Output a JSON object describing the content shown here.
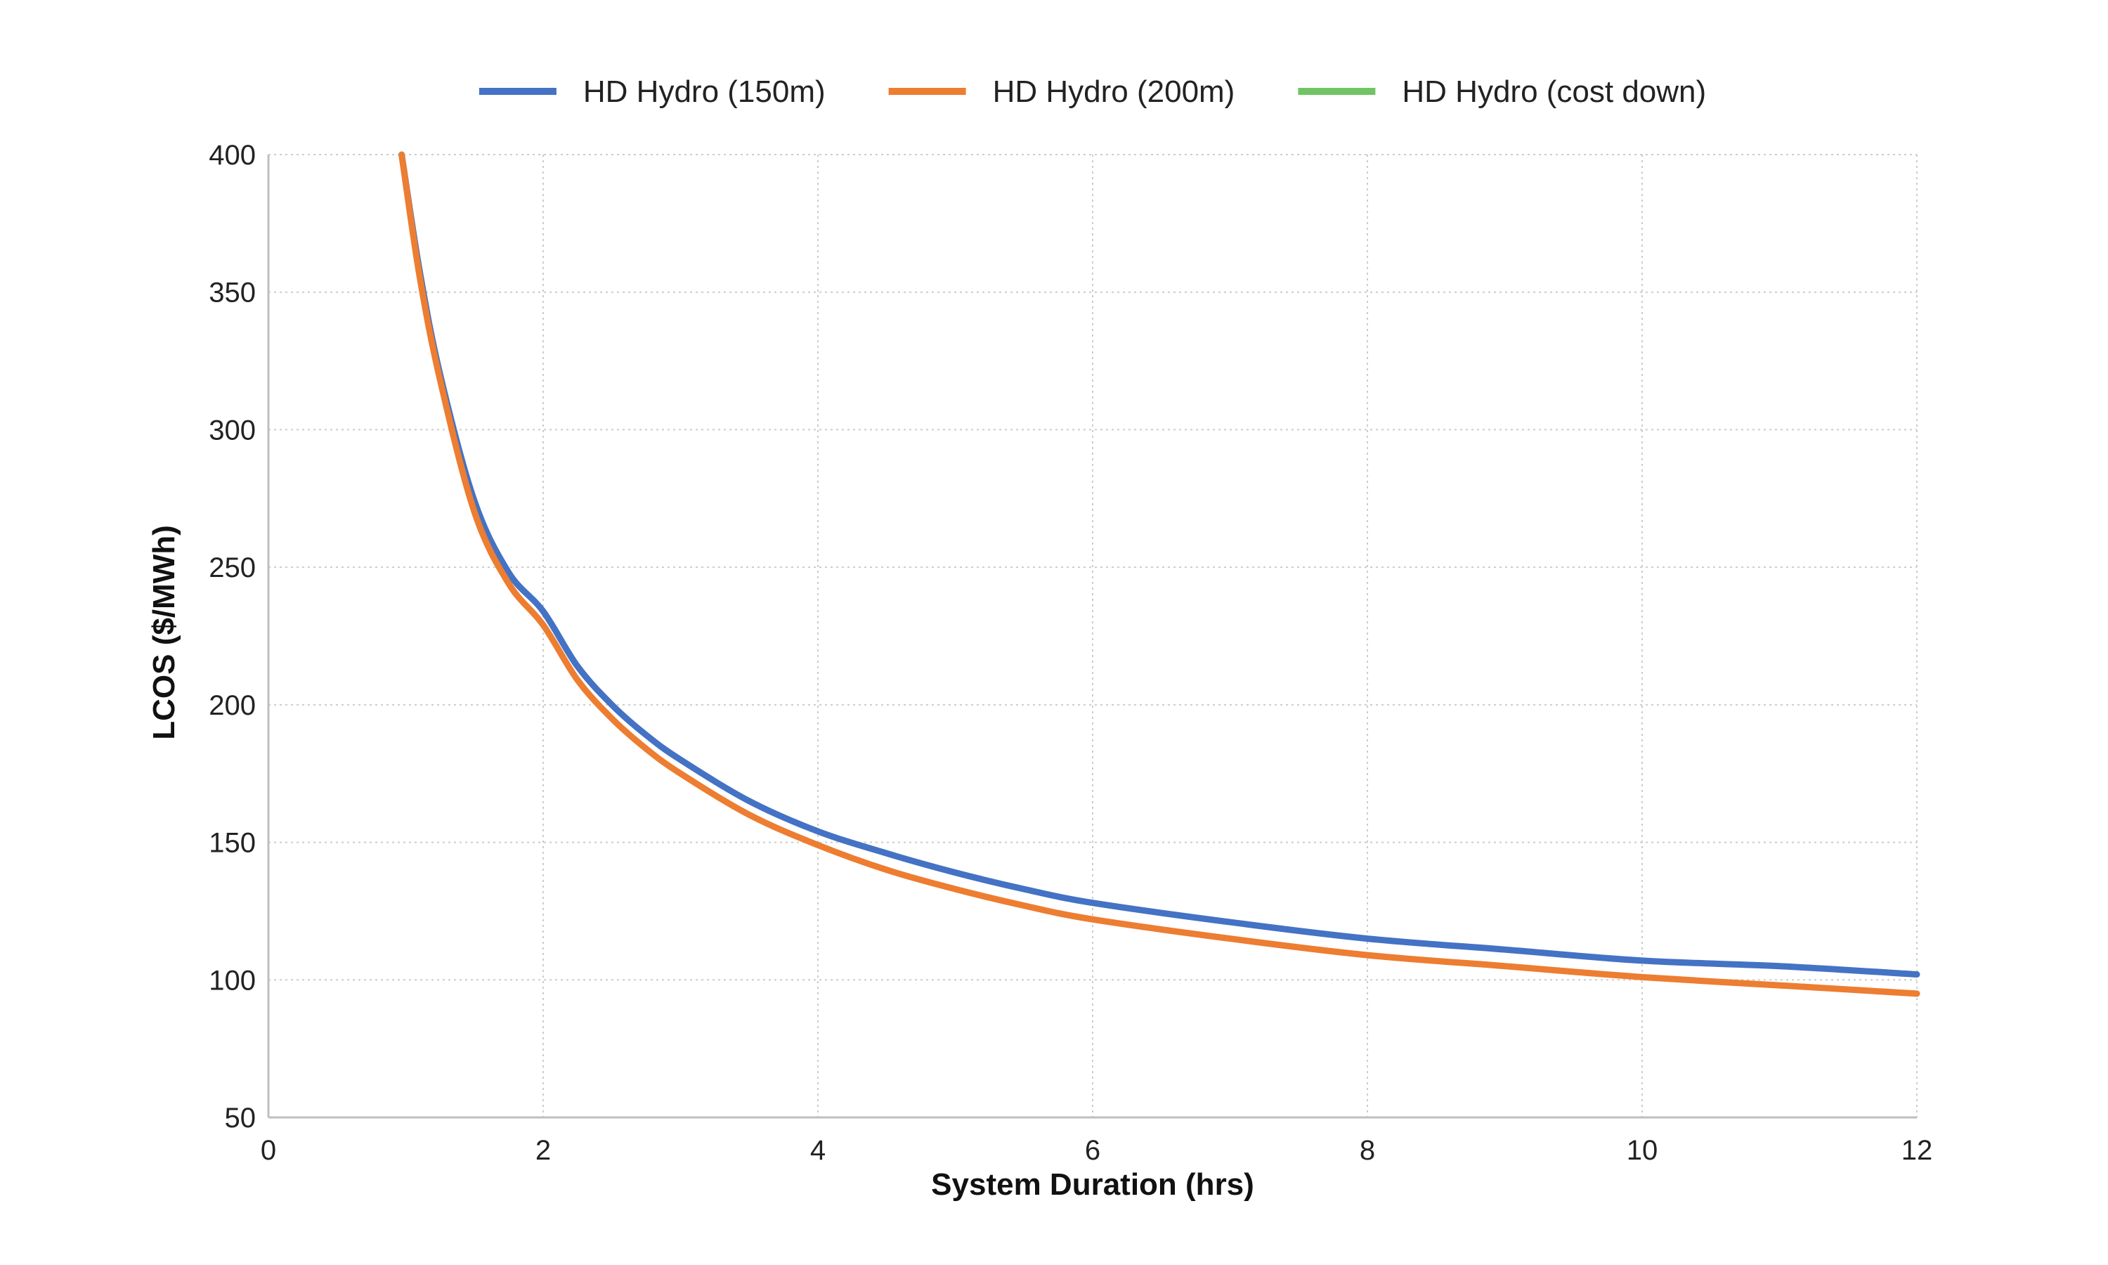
{
  "chart_data": {
    "type": "line",
    "title": "",
    "xlabel": "System Duration (hrs)",
    "ylabel": "LCOS ($/MWh)",
    "xlim": [
      0,
      12
    ],
    "ylim": [
      50,
      400
    ],
    "xticks": [
      0,
      2,
      4,
      6,
      8,
      10,
      12
    ],
    "yticks": [
      50,
      100,
      150,
      200,
      250,
      300,
      350,
      400
    ],
    "grid": true,
    "legend_position": "top-center",
    "series": [
      {
        "name": "HD Hydro (150m)",
        "color": "#4472C4",
        "x": [
          0.97,
          1.1,
          1.25,
          1.5,
          1.75,
          2,
          2.25,
          2.5,
          2.75,
          3,
          3.5,
          4,
          4.5,
          5,
          5.5,
          6,
          7,
          8,
          9,
          10,
          11,
          12
        ],
        "y": [
          400,
          358,
          320,
          274,
          248,
          234,
          214,
          200,
          189,
          180,
          165,
          154,
          146,
          139,
          133,
          128,
          121,
          115,
          111,
          107,
          105,
          102
        ]
      },
      {
        "name": "HD Hydro (200m)",
        "color": "#ED7D31",
        "x": [
          0.97,
          1.1,
          1.25,
          1.5,
          1.75,
          2,
          2.25,
          2.5,
          2.75,
          3,
          3.5,
          4,
          4.5,
          5,
          5.5,
          6,
          7,
          8,
          9,
          10,
          11,
          12
        ],
        "y": [
          400,
          356,
          318,
          270,
          244,
          229,
          209,
          195,
          184,
          175,
          160,
          149,
          140,
          133,
          127,
          122,
          115,
          109,
          105,
          101,
          98,
          95
        ]
      },
      {
        "name": "HD Hydro (cost down)",
        "color": "#70C463",
        "x": [],
        "y": []
      }
    ]
  }
}
